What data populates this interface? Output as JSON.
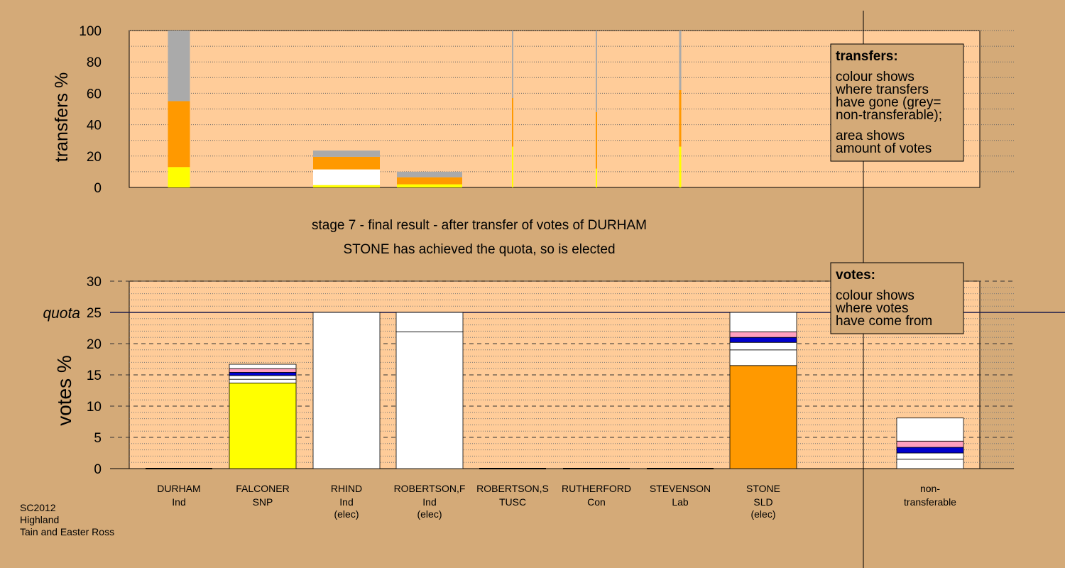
{
  "colors": {
    "background": "#d4aa78",
    "plot_area": "#ffcc99",
    "legend_box": "#d4aa78",
    "SNP": "#ffff00",
    "SLD": "#ff9900",
    "Ind": "#ffffff",
    "Con": "#0000cc",
    "Lab": "#ff9fbf",
    "non_transferable": "#aaaaaa",
    "TUSC": "#333333"
  },
  "chart_data": [
    {
      "id": "transfers",
      "type": "bar",
      "ylabel": "transfers %",
      "ylim": [
        0,
        100
      ],
      "yticks": [
        0,
        20,
        40,
        60,
        80,
        100
      ],
      "grid": "dotted",
      "legend": {
        "title": "transfers:",
        "lines": [
          "colour shows",
          "where transfers",
          "have gone (grey=",
          "non-transferable);",
          "",
          "area shows",
          "amount of votes"
        ]
      },
      "bars": [
        {
          "donor": "DURHAM",
          "width_share": 1.0,
          "segments": [
            {
              "party": "SNP",
              "value": 13
            },
            {
              "party": "SLD",
              "value": 42
            },
            {
              "party": "non_transferable",
              "value": 45
            }
          ]
        },
        {
          "donor": "RHIND",
          "width_share": 0.24,
          "segments": [
            {
              "party": "SNP",
              "value": 1.5
            },
            {
              "party": "Ind",
              "value": 10
            },
            {
              "party": "SLD",
              "value": 8
            },
            {
              "party": "non_transferable",
              "value": 4
            }
          ]
        },
        {
          "donor": "ROBERTSON,F",
          "width_share": 0.1,
          "segments": [
            {
              "party": "SNP",
              "value": 2
            },
            {
              "party": "SLD",
              "value": 4.5
            },
            {
              "party": "non_transferable",
              "value": 3.5
            }
          ]
        },
        {
          "donor": "ROBERTSON,S",
          "width_share": 0.03,
          "segments": [
            {
              "party": "SNP",
              "value": 26
            },
            {
              "party": "SLD",
              "value": 31
            },
            {
              "party": "non_transferable",
              "value": 43
            }
          ]
        },
        {
          "donor": "RUTHERFORD",
          "width_share": 0.05,
          "segments": [
            {
              "party": "SNP",
              "value": 12
            },
            {
              "party": "SLD",
              "value": 36
            },
            {
              "party": "non_transferable",
              "value": 52
            }
          ]
        },
        {
          "donor": "STEVENSON",
          "width_share": 0.1,
          "segments": [
            {
              "party": "SNP",
              "value": 26
            },
            {
              "party": "SLD",
              "value": 36
            },
            {
              "party": "non_transferable",
              "value": 38
            }
          ]
        }
      ]
    },
    {
      "id": "votes",
      "type": "bar",
      "ylabel": "votes %",
      "ylim": [
        0,
        30
      ],
      "yticks": [
        0,
        5,
        10,
        15,
        20,
        25,
        30
      ],
      "quota": {
        "label": "quota",
        "value": 25
      },
      "legend": {
        "title": "votes:",
        "lines": [
          "colour shows",
          "where votes",
          "have come from"
        ]
      },
      "categories": [
        {
          "name": "DURHAM",
          "party": "Ind",
          "elected": ""
        },
        {
          "name": "FALCONER",
          "party": "SNP",
          "elected": ""
        },
        {
          "name": "RHIND",
          "party": "Ind",
          "elected": "(elec)"
        },
        {
          "name": "ROBERTSON,F",
          "party": "Ind",
          "elected": "(elec)"
        },
        {
          "name": "ROBERTSON,S",
          "party": "TUSC",
          "elected": ""
        },
        {
          "name": "RUTHERFORD",
          "party": "Con",
          "elected": ""
        },
        {
          "name": "STEVENSON",
          "party": "Lab",
          "elected": ""
        },
        {
          "name": "STONE",
          "party": "SLD",
          "elected": "(elec)"
        },
        {
          "name": "non-",
          "party": "transferable",
          "elected": ""
        }
      ],
      "bars": [
        [],
        [
          {
            "party": "SNP",
            "value": 13.7
          },
          {
            "party": "Ind",
            "value": 0.6
          },
          {
            "party": "Ind",
            "value": 0.6
          },
          {
            "party": "Con",
            "value": 0.5
          },
          {
            "party": "Lab",
            "value": 0.6
          },
          {
            "party": "Ind",
            "value": 0.7
          }
        ],
        [
          {
            "party": "Ind",
            "value": 25
          }
        ],
        [
          {
            "party": "Ind",
            "value": 21.9
          },
          {
            "party": "Ind",
            "value": 3.1
          }
        ],
        [],
        [],
        [],
        [
          {
            "party": "SLD",
            "value": 16.5
          },
          {
            "party": "Ind",
            "value": 2.5
          },
          {
            "party": "Ind",
            "value": 1.2
          },
          {
            "party": "Con",
            "value": 0.8
          },
          {
            "party": "Lab",
            "value": 0.9
          },
          {
            "party": "Ind",
            "value": 3.1
          }
        ],
        [
          {
            "party": "Ind",
            "value": 1.5
          },
          {
            "party": "Ind",
            "value": 1.0
          },
          {
            "party": "Con",
            "value": 0.9
          },
          {
            "party": "Lab",
            "value": 1.0
          },
          {
            "party": "Ind",
            "value": 3.7
          }
        ]
      ]
    }
  ],
  "stage_title": "stage 7 - final result - after transfer of votes of DURHAM",
  "stage_subtitle": "STONE has achieved the quota, so is elected",
  "footer": [
    "SC2012",
    "Highland",
    "Tain and Easter Ross"
  ]
}
